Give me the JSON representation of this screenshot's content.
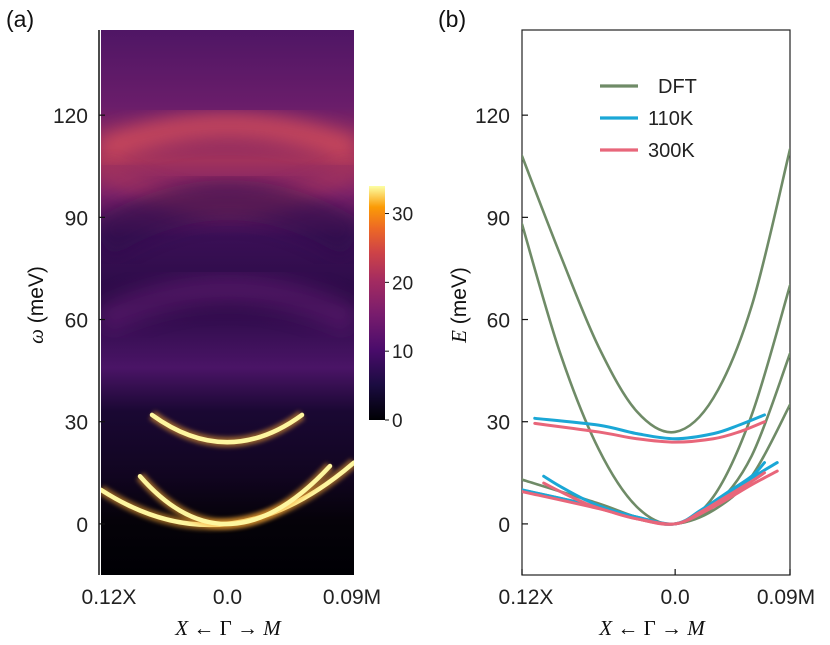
{
  "figure": {
    "panel_a_label": "(a)",
    "panel_b_label": "(b)"
  },
  "chart_data": [
    {
      "type": "heatmap",
      "panel": "(a)",
      "xlabel": "X ← Γ → M",
      "xlabel_parts": {
        "start": "X",
        "arrow1": " ← ",
        "center": "Γ",
        "arrow2": " → ",
        "end": "M"
      },
      "ylabel": "ω (meV)",
      "ylabel_parts": {
        "symbol": "ω",
        "unit": " (meV)"
      },
      "x_ticks": [
        "0.12X",
        "0.0",
        "0.09M"
      ],
      "y_ticks": [
        0,
        30,
        60,
        90,
        120
      ],
      "ylim": [
        -15,
        145
      ],
      "colormap": "inferno",
      "colorbar": {
        "ticks": [
          0,
          10,
          20,
          30
        ],
        "range": [
          0,
          34
        ]
      },
      "bright_features": [
        {
          "name": "optical branch",
          "energy_at_gamma_meV": 24,
          "energy_at_edges_meV": 32
        },
        {
          "name": "acoustic branch",
          "energy_at_gamma_meV": 0,
          "energy_at_edges_meV": 18
        }
      ]
    },
    {
      "type": "line",
      "panel": "(b)",
      "xlabel": "X ← Γ → M",
      "xlabel_parts": {
        "start": "X",
        "arrow1": " ← ",
        "center": "Γ",
        "arrow2": " → ",
        "end": "M"
      },
      "ylabel": "E (meV)",
      "ylabel_parts": {
        "symbol": "E",
        "unit": " (meV)"
      },
      "x_ticks": [
        "0.12X",
        "0.0",
        "0.09M"
      ],
      "y_ticks": [
        0,
        30,
        60,
        90,
        120
      ],
      "xlim": [
        -0.12,
        0.09
      ],
      "ylim": [
        -15,
        145
      ],
      "legend": [
        {
          "label": "DFT",
          "color": "#6f8b67"
        },
        {
          "label": "110K",
          "color": "#1aa7d6"
        },
        {
          "label": "300K",
          "color": "#e8667a"
        }
      ],
      "series": [
        {
          "name": "DFT",
          "color": "#6f8b67",
          "x": [
            -0.12,
            -0.09,
            -0.06,
            -0.03,
            0.0,
            0.03,
            0.06,
            0.09
          ],
          "y": [
            108,
            79,
            52,
            33,
            27,
            37,
            64,
            110
          ]
        },
        {
          "name": "DFT",
          "color": "#6f8b67",
          "x": [
            -0.12,
            -0.09,
            -0.06,
            -0.03,
            0.0,
            0.03,
            0.06,
            0.09
          ],
          "y": [
            88,
            50,
            22,
            5,
            0,
            8,
            32,
            70
          ]
        },
        {
          "name": "DFT",
          "color": "#6f8b67",
          "x": [
            -0.12,
            -0.06,
            -0.03,
            0.0,
            0.03,
            0.06,
            0.09
          ],
          "y": [
            13,
            6,
            2,
            0,
            5,
            20,
            50
          ]
        },
        {
          "name": "DFT",
          "color": "#6f8b67",
          "x": [
            -0.12,
            -0.06,
            -0.03,
            0.0,
            0.03,
            0.06,
            0.09
          ],
          "y": [
            10,
            5,
            1.5,
            0,
            4,
            14,
            35
          ]
        },
        {
          "name": "110K",
          "color": "#1aa7d6",
          "x": [
            -0.11,
            -0.06,
            -0.03,
            0.0,
            0.03,
            0.05,
            0.07
          ],
          "y": [
            31,
            29,
            26.5,
            25,
            26.5,
            29,
            32
          ]
        },
        {
          "name": "300K",
          "color": "#e8667a",
          "x": [
            -0.11,
            -0.06,
            -0.03,
            0.0,
            0.03,
            0.05,
            0.07
          ],
          "y": [
            29.5,
            27,
            25,
            24,
            25,
            27,
            30
          ]
        },
        {
          "name": "110K",
          "color": "#1aa7d6",
          "x": [
            -0.12,
            -0.06,
            -0.03,
            0.0,
            0.03,
            0.06,
            0.08
          ],
          "y": [
            10,
            5,
            2,
            0,
            6,
            13.5,
            18
          ]
        },
        {
          "name": "300K",
          "color": "#e8667a",
          "x": [
            -0.12,
            -0.06,
            -0.03,
            0.0,
            0.03,
            0.06,
            0.08
          ],
          "y": [
            9.5,
            4.5,
            1.5,
            0,
            5,
            11.5,
            15.5
          ]
        },
        {
          "name": "110K",
          "color": "#1aa7d6",
          "x": [
            -0.103,
            -0.09,
            -0.07,
            -0.05,
            -0.03,
            0.0,
            0.02,
            0.04,
            0.06,
            0.07
          ],
          "y": [
            14,
            11,
            7,
            4,
            2,
            0,
            4,
            9,
            14,
            18
          ]
        },
        {
          "name": "300K",
          "color": "#e8667a",
          "x": [
            -0.103,
            -0.09,
            -0.07,
            -0.05,
            -0.03,
            0.0,
            0.02,
            0.04,
            0.06,
            0.07
          ],
          "y": [
            12,
            9.5,
            6,
            3.5,
            1.5,
            0,
            3.5,
            8,
            12.5,
            15
          ]
        }
      ]
    }
  ]
}
